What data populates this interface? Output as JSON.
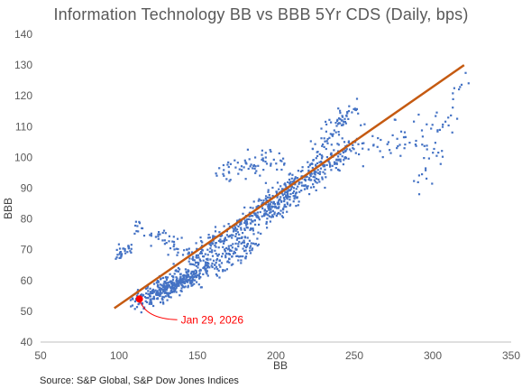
{
  "title": "Information Technology BB vs BBB 5Yr CDS (Daily, bps)",
  "source": "Source: S&P Global, S&P Dow Jones Indices",
  "chart_data": {
    "type": "scatter",
    "title": "Information Technology BB vs BBB 5Yr CDS (Daily, bps)",
    "xlabel": "BB",
    "ylabel": "BBB",
    "xlim": [
      50,
      350
    ],
    "ylim": [
      40,
      140
    ],
    "xticks": [
      50,
      100,
      150,
      200,
      250,
      300,
      350
    ],
    "yticks": [
      40,
      50,
      60,
      70,
      80,
      90,
      100,
      110,
      120,
      130,
      140
    ],
    "grid": false,
    "legend": "none",
    "colors": {
      "points": "#4472C4",
      "trendline": "#C55A11",
      "highlight": "#FF0000",
      "axis": "#BFBFBF"
    },
    "trendline": {
      "x": [
        97,
        320
      ],
      "y": [
        51,
        130
      ]
    },
    "highlight": {
      "label": "Jan 29, 2026",
      "x": 113,
      "y": 54
    },
    "clusters": [
      {
        "x0": 110,
        "y0": 53,
        "x1": 150,
        "y1": 62,
        "n": 260,
        "sx": 2.5,
        "sy": 1.5
      },
      {
        "x0": 125,
        "y0": 57,
        "x1": 185,
        "y1": 72,
        "n": 240,
        "sx": 3.5,
        "sy": 2.2
      },
      {
        "x0": 150,
        "y0": 68,
        "x1": 210,
        "y1": 88,
        "n": 230,
        "sx": 3.5,
        "sy": 2.3
      },
      {
        "x0": 180,
        "y0": 80,
        "x1": 245,
        "y1": 100,
        "n": 200,
        "sx": 3.2,
        "sy": 2.2
      },
      {
        "x0": 195,
        "y0": 85,
        "x1": 250,
        "y1": 105,
        "n": 120,
        "sx": 3,
        "sy": 2
      },
      {
        "x0": 165,
        "y0": 95,
        "x1": 205,
        "y1": 100,
        "n": 70,
        "sx": 3,
        "sy": 2
      },
      {
        "x0": 225,
        "y0": 100,
        "x1": 250,
        "y1": 117,
        "n": 80,
        "sx": 3,
        "sy": 2
      },
      {
        "x0": 98,
        "y0": 68,
        "x1": 108,
        "y1": 71,
        "n": 30,
        "sx": 2,
        "sy": 1.2
      },
      {
        "x0": 108,
        "y0": 79,
        "x1": 160,
        "y1": 64,
        "n": 70,
        "sx": 3,
        "sy": 1.8
      },
      {
        "x0": 255,
        "y0": 102,
        "x1": 300,
        "y1": 108,
        "n": 50,
        "sx": 5,
        "sy": 3
      },
      {
        "x0": 290,
        "y0": 90,
        "x1": 320,
        "y1": 125,
        "n": 40,
        "sx": 3,
        "sy": 3
      }
    ]
  }
}
